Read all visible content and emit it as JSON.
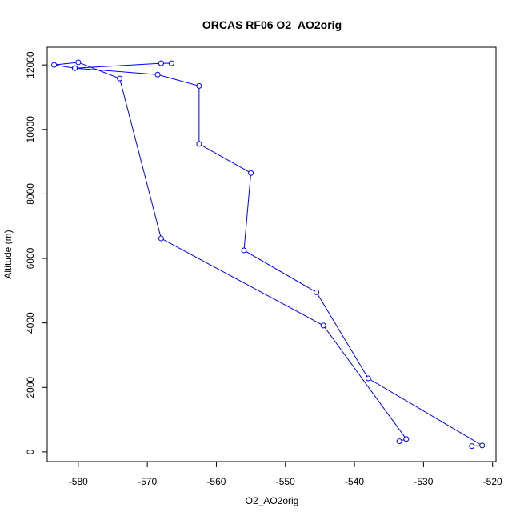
{
  "chart_data": {
    "type": "line",
    "title": "ORCAS RF06 O2_AO2orig",
    "xlabel": "O2_AO2orig",
    "ylabel": "Altitude (m)",
    "xlim": [
      -584.5,
      -519.5
    ],
    "ylim": [
      -300,
      12550
    ],
    "xticks": [
      -580,
      -570,
      -560,
      -550,
      -540,
      -530,
      -520
    ],
    "yticks": [
      0,
      2000,
      4000,
      6000,
      8000,
      10000,
      12000
    ],
    "grid": false,
    "marker": "open-circle",
    "color": "#0000ff",
    "series": [
      {
        "x": [
          -523.0,
          -521.5,
          -538.0,
          -545.5,
          -556.0,
          -555.0,
          -562.5,
          -562.5,
          -568.5,
          -580.5,
          -568.0,
          -566.5,
          -568.0,
          -580.5,
          -583.5,
          -580.0,
          -574.0,
          -568.0,
          -544.5,
          -532.5,
          -533.5
        ],
        "y": [
          180,
          200,
          2280,
          4950,
          6250,
          8650,
          9550,
          11350,
          11700,
          11900,
          12050,
          12050,
          12050,
          11900,
          12000,
          12080,
          11580,
          6620,
          3920,
          400,
          330
        ]
      }
    ]
  }
}
